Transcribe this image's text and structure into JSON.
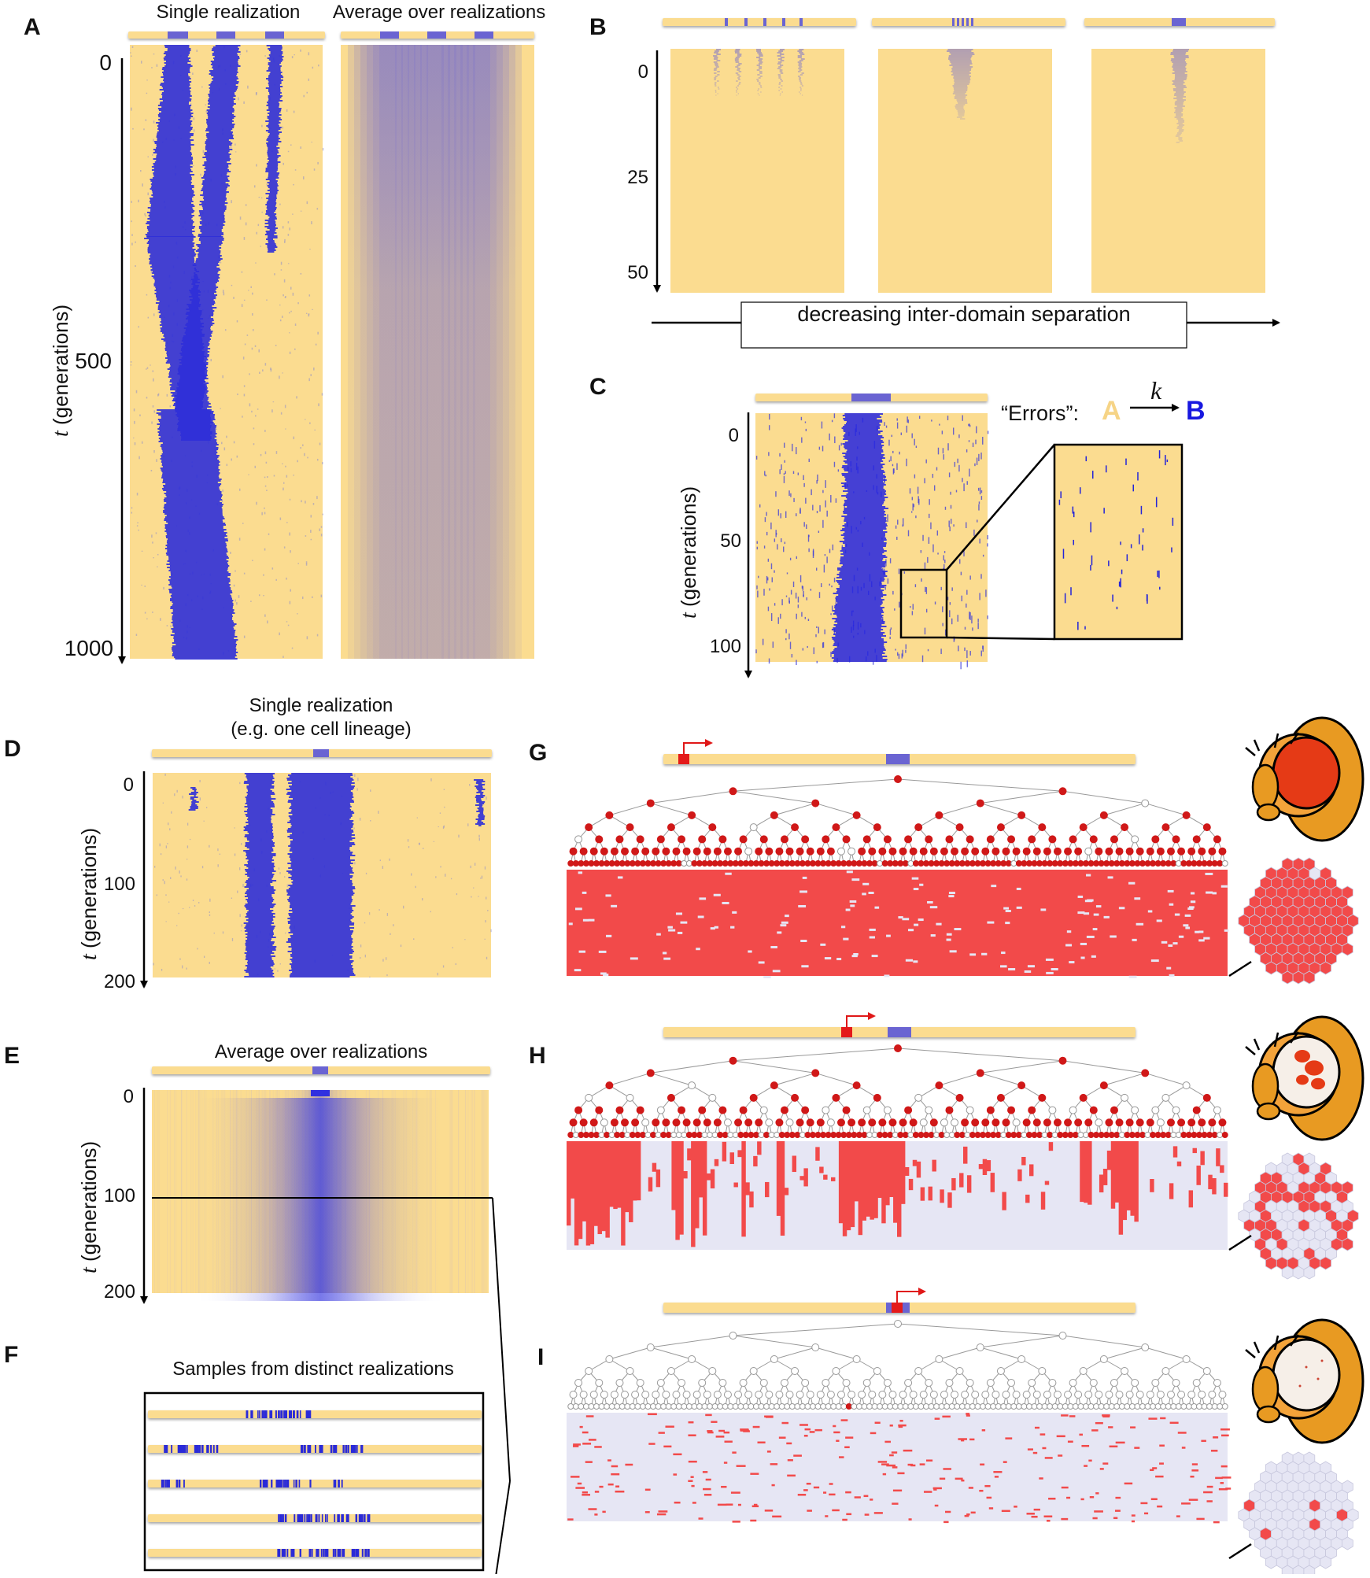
{
  "panels": {
    "A": {
      "label": "A",
      "title_left": "Single realization",
      "title_right": "Average over realizations",
      "ticks": [
        "0",
        "500",
        "1000"
      ],
      "ylabel_var": "t",
      "ylabel_rest": " (generations)"
    },
    "B": {
      "label": "B",
      "ticks": [
        "0",
        "25",
        "50"
      ],
      "arrow_label": "decreasing inter-domain separation"
    },
    "C": {
      "label": "C",
      "ticks": [
        "0",
        "50",
        "100"
      ],
      "ylabel_var": "t",
      "ylabel_rest": " (generations)",
      "errors_label": "“Errors”:",
      "state_a": "A",
      "rate": "k",
      "state_b": "B"
    },
    "D": {
      "label": "D",
      "title_line1": "Single realization",
      "title_line2": "(e.g. one cell lineage)",
      "ticks": [
        "0",
        "100",
        "200"
      ],
      "ylabel_var": "t",
      "ylabel_rest": " (generations)"
    },
    "E": {
      "label": "E",
      "title": "Average over realizations",
      "ticks": [
        "0",
        "100",
        "200"
      ],
      "ylabel_var": "t",
      "ylabel_rest": " (generations)"
    },
    "F": {
      "label": "F",
      "title": "Samples from distinct realizations"
    },
    "G": {
      "label": "G"
    },
    "H": {
      "label": "H"
    },
    "I": {
      "label": "I"
    }
  },
  "colors": {
    "yellow": "#fbdc90",
    "blue": "#2f2fd8",
    "avg_blue": "#6a64d2",
    "red": "#f04848",
    "dark_red": "#c41e1e",
    "lavender": "#e6e6f4",
    "grey": "#9a9a9a",
    "orange": "#e89a22"
  },
  "icons": [
    "fly-eye-icon",
    "hexagon-ommatidia-icon",
    "promoter-arrow-icon"
  ]
}
